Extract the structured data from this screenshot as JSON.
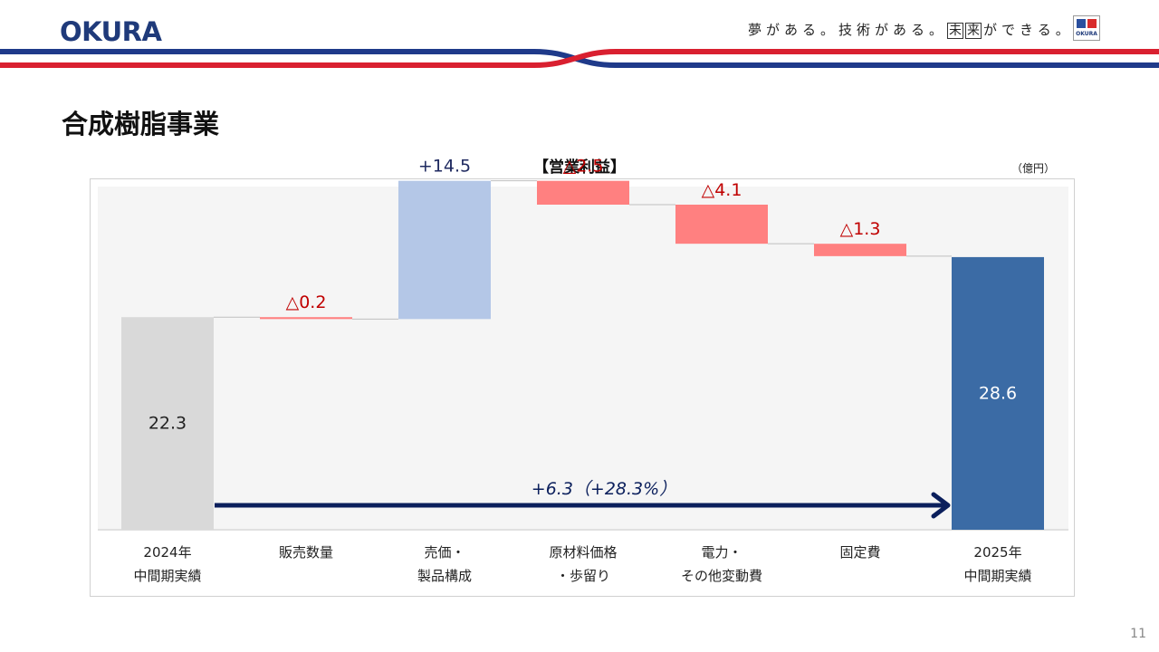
{
  "header": {
    "logo_text": "OKURA",
    "tagline_part1": "夢がある。技術がある。",
    "tagline_boxed_1": "未",
    "tagline_boxed_2": "来",
    "tagline_part2": "ができる。",
    "small_logo_text": "OKURA"
  },
  "page": {
    "title": "合成樹脂事業",
    "page_number": "11"
  },
  "colors": {
    "start_bar": "#d9d9d9",
    "increase_bar": "#b4c7e7",
    "decrease_bar": "#ff8080",
    "end_bar": "#3b6ba5",
    "negative_label": "#c00000",
    "positive_label": "#1f2a60",
    "arrow": "#0b1f5c",
    "stripe_blue": "#1f3a8a",
    "stripe_red": "#d92030"
  },
  "chart_data": {
    "type": "waterfall",
    "title": "【営業利益】",
    "unit": "（億円）",
    "ylim": [
      0,
      36
    ],
    "grid": false,
    "legend": "none",
    "categories": [
      [
        "2024年",
        "中間期実績"
      ],
      [
        "販売数量"
      ],
      [
        "売価・",
        "製品構成"
      ],
      [
        "原材料価格",
        "・歩留り"
      ],
      [
        "電力・",
        "その他変動費"
      ],
      [
        "固定費"
      ],
      [
        "2025年",
        "中間期実績"
      ]
    ],
    "steps": [
      {
        "kind": "total",
        "value": 22.3,
        "label": "22.3"
      },
      {
        "kind": "delta",
        "value": -0.2,
        "label": "△0.2"
      },
      {
        "kind": "delta",
        "value": 14.5,
        "label": "+14.5"
      },
      {
        "kind": "delta",
        "value": -2.5,
        "label": "△2.5"
      },
      {
        "kind": "delta",
        "value": -4.1,
        "label": "△4.1"
      },
      {
        "kind": "delta",
        "value": -1.3,
        "label": "△1.3"
      },
      {
        "kind": "total",
        "value": 28.6,
        "label": "28.6"
      }
    ],
    "annotation": "+6.3（+28.3%）"
  }
}
